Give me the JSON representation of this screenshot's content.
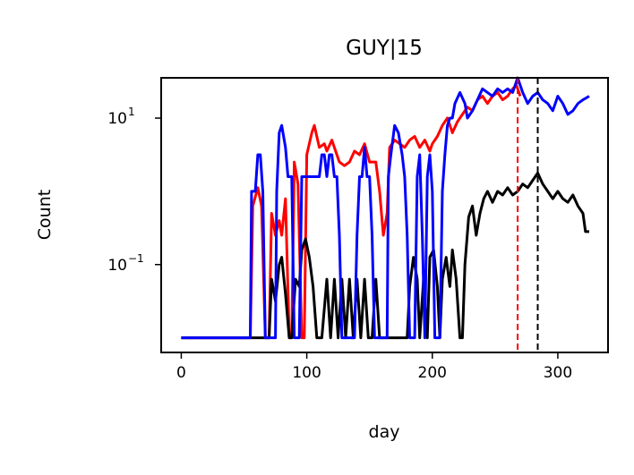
{
  "chart_data": {
    "type": "line",
    "title": "GUY|15",
    "xlabel": "day",
    "ylabel": "Count",
    "xlim": [
      -16,
      340
    ],
    "y_scale": "log",
    "ylim_log10": [
      -2.2,
      1.55
    ],
    "x_ticks": [
      {
        "value": 0,
        "label": "0"
      },
      {
        "value": 100,
        "label": "100"
      },
      {
        "value": 200,
        "label": "200"
      },
      {
        "value": 300,
        "label": "300"
      }
    ],
    "y_ticks": [
      {
        "log10": 1,
        "base": "10",
        "exp": "1"
      },
      {
        "log10": -1,
        "base": "10",
        "exp": "−1"
      }
    ],
    "vlines": [
      {
        "x": 268,
        "color": "#ff0000",
        "style": "dashed"
      },
      {
        "x": 284,
        "color": "#000000",
        "style": "dashed"
      }
    ],
    "series": [
      {
        "color": "#ff0000",
        "points": [
          [
            0,
            -2
          ],
          [
            55,
            -2
          ],
          [
            57,
            -0.2
          ],
          [
            61,
            0.05
          ],
          [
            64,
            -0.2
          ],
          [
            67,
            -2
          ],
          [
            70,
            -2
          ],
          [
            72,
            -0.3
          ],
          [
            75,
            -0.6
          ],
          [
            78,
            -0.4
          ],
          [
            80,
            -0.6
          ],
          [
            83,
            -0.1
          ],
          [
            86,
            -2
          ],
          [
            88,
            -2
          ],
          [
            90,
            0.4
          ],
          [
            93,
            0.1
          ],
          [
            96,
            -2
          ],
          [
            98,
            -2
          ],
          [
            100,
            0.5
          ],
          [
            104,
            0.8
          ],
          [
            106,
            0.9
          ],
          [
            110,
            0.6
          ],
          [
            114,
            0.65
          ],
          [
            116,
            0.55
          ],
          [
            120,
            0.7
          ],
          [
            124,
            0.5
          ],
          [
            126,
            0.4
          ],
          [
            130,
            0.35
          ],
          [
            134,
            0.4
          ],
          [
            138,
            0.55
          ],
          [
            142,
            0.5
          ],
          [
            146,
            0.65
          ],
          [
            150,
            0.4
          ],
          [
            155,
            0.4
          ],
          [
            158,
            0.0
          ],
          [
            161,
            -0.6
          ],
          [
            164,
            -0.3
          ],
          [
            166,
            0.6
          ],
          [
            170,
            0.7
          ],
          [
            174,
            0.65
          ],
          [
            178,
            0.6
          ],
          [
            182,
            0.7
          ],
          [
            186,
            0.75
          ],
          [
            190,
            0.6
          ],
          [
            194,
            0.7
          ],
          [
            198,
            0.55
          ],
          [
            200,
            0.65
          ],
          [
            204,
            0.75
          ],
          [
            208,
            0.9
          ],
          [
            212,
            1.0
          ],
          [
            216,
            0.8
          ],
          [
            220,
            0.95
          ],
          [
            224,
            1.05
          ],
          [
            228,
            1.15
          ],
          [
            232,
            1.1
          ],
          [
            236,
            1.25
          ],
          [
            240,
            1.3
          ],
          [
            244,
            1.2
          ],
          [
            248,
            1.3
          ],
          [
            252,
            1.35
          ],
          [
            256,
            1.25
          ],
          [
            260,
            1.3
          ],
          [
            264,
            1.4
          ],
          [
            267,
            1.45
          ],
          [
            270,
            1.3
          ]
        ]
      },
      {
        "color": "#000000",
        "points": [
          [
            0,
            -2
          ],
          [
            70,
            -2
          ],
          [
            72,
            -1.2
          ],
          [
            75,
            -1.5
          ],
          [
            78,
            -1.0
          ],
          [
            80,
            -0.9
          ],
          [
            83,
            -1.4
          ],
          [
            86,
            -2
          ],
          [
            88,
            -2
          ],
          [
            91,
            -1.2
          ],
          [
            94,
            -1.3
          ],
          [
            96,
            -0.8
          ],
          [
            99,
            -0.65
          ],
          [
            102,
            -0.9
          ],
          [
            105,
            -1.3
          ],
          [
            108,
            -2
          ],
          [
            112,
            -2
          ],
          [
            116,
            -1.2
          ],
          [
            119,
            -2
          ],
          [
            122,
            -1.2
          ],
          [
            125,
            -2
          ],
          [
            128,
            -1.2
          ],
          [
            131,
            -2
          ],
          [
            134,
            -1.2
          ],
          [
            137,
            -2
          ],
          [
            140,
            -1.2
          ],
          [
            143,
            -2
          ],
          [
            146,
            -1.2
          ],
          [
            149,
            -2
          ],
          [
            152,
            -2
          ],
          [
            155,
            -1.2
          ],
          [
            158,
            -2
          ],
          [
            162,
            -2
          ],
          [
            168,
            -2
          ],
          [
            174,
            -2
          ],
          [
            180,
            -2
          ],
          [
            182,
            -1.3
          ],
          [
            185,
            -0.9
          ],
          [
            188,
            -1.2
          ],
          [
            190,
            -2
          ],
          [
            193,
            -1.2
          ],
          [
            196,
            -2
          ],
          [
            198,
            -0.9
          ],
          [
            201,
            -0.8
          ],
          [
            204,
            -1.3
          ],
          [
            206,
            -2
          ],
          [
            208,
            -1.2
          ],
          [
            211,
            -0.9
          ],
          [
            214,
            -1.3
          ],
          [
            216,
            -0.8
          ],
          [
            219,
            -1.2
          ],
          [
            222,
            -2
          ],
          [
            224,
            -2
          ],
          [
            226,
            -1.0
          ],
          [
            229,
            -0.35
          ],
          [
            232,
            -0.2
          ],
          [
            235,
            -0.6
          ],
          [
            238,
            -0.3
          ],
          [
            241,
            -0.1
          ],
          [
            244,
            0.0
          ],
          [
            248,
            -0.15
          ],
          [
            252,
            0.0
          ],
          [
            256,
            -0.05
          ],
          [
            260,
            0.05
          ],
          [
            264,
            -0.05
          ],
          [
            268,
            0.0
          ],
          [
            272,
            0.1
          ],
          [
            276,
            0.05
          ],
          [
            280,
            0.15
          ],
          [
            284,
            0.25
          ],
          [
            288,
            0.1
          ],
          [
            292,
            0.0
          ],
          [
            296,
            -0.1
          ],
          [
            300,
            0.0
          ],
          [
            304,
            -0.1
          ],
          [
            308,
            -0.15
          ],
          [
            312,
            -0.05
          ],
          [
            316,
            -0.2
          ],
          [
            320,
            -0.3
          ],
          [
            322,
            -0.55
          ],
          [
            325,
            -0.55
          ]
        ]
      },
      {
        "color": "#0000ff",
        "points": [
          [
            0,
            -2
          ],
          [
            55,
            -2
          ],
          [
            56,
            0
          ],
          [
            59,
            0
          ],
          [
            61,
            0.5
          ],
          [
            63,
            0.5
          ],
          [
            65,
            0
          ],
          [
            67,
            -2
          ],
          [
            75,
            -2
          ],
          [
            76,
            0
          ],
          [
            78,
            0.8
          ],
          [
            80,
            0.9
          ],
          [
            83,
            0.6
          ],
          [
            85,
            0.2
          ],
          [
            88,
            0.2
          ],
          [
            90,
            -2
          ],
          [
            94,
            -2
          ],
          [
            96,
            0.2
          ],
          [
            100,
            0.2
          ],
          [
            104,
            0.2
          ],
          [
            108,
            0.2
          ],
          [
            110,
            0.2
          ],
          [
            112,
            0.5
          ],
          [
            114,
            0.5
          ],
          [
            116,
            0.2
          ],
          [
            118,
            0.5
          ],
          [
            120,
            0.5
          ],
          [
            122,
            0.2
          ],
          [
            124,
            0.2
          ],
          [
            126,
            -0.6
          ],
          [
            128,
            -2
          ],
          [
            138,
            -2
          ],
          [
            140,
            -0.6
          ],
          [
            142,
            0.2
          ],
          [
            144,
            0.2
          ],
          [
            146,
            0.6
          ],
          [
            148,
            0.2
          ],
          [
            150,
            0.2
          ],
          [
            152,
            -0.6
          ],
          [
            154,
            -2
          ],
          [
            164,
            -2
          ],
          [
            165,
            0.2
          ],
          [
            167,
            0.5
          ],
          [
            170,
            0.9
          ],
          [
            173,
            0.8
          ],
          [
            176,
            0.5
          ],
          [
            178,
            0.2
          ],
          [
            180,
            -0.6
          ],
          [
            182,
            -2
          ],
          [
            186,
            -2
          ],
          [
            188,
            0.2
          ],
          [
            190,
            0.5
          ],
          [
            192,
            -0.6
          ],
          [
            194,
            -2
          ],
          [
            196,
            0.2
          ],
          [
            198,
            0.5
          ],
          [
            200,
            0.0
          ],
          [
            202,
            -2
          ],
          [
            206,
            -2
          ],
          [
            208,
            0.0
          ],
          [
            210,
            0.5
          ],
          [
            212,
            0.9
          ],
          [
            214,
            1.0
          ],
          [
            216,
            1.0
          ],
          [
            218,
            1.2
          ],
          [
            222,
            1.35
          ],
          [
            226,
            1.2
          ],
          [
            228,
            1.0
          ],
          [
            232,
            1.1
          ],
          [
            236,
            1.25
          ],
          [
            240,
            1.4
          ],
          [
            244,
            1.35
          ],
          [
            248,
            1.3
          ],
          [
            252,
            1.4
          ],
          [
            256,
            1.35
          ],
          [
            260,
            1.4
          ],
          [
            264,
            1.35
          ],
          [
            268,
            1.55
          ],
          [
            272,
            1.35
          ],
          [
            276,
            1.2
          ],
          [
            280,
            1.3
          ],
          [
            284,
            1.35
          ],
          [
            288,
            1.25
          ],
          [
            292,
            1.2
          ],
          [
            296,
            1.1
          ],
          [
            300,
            1.3
          ],
          [
            304,
            1.2
          ],
          [
            308,
            1.05
          ],
          [
            312,
            1.1
          ],
          [
            316,
            1.2
          ],
          [
            320,
            1.25
          ],
          [
            325,
            1.3
          ]
        ]
      }
    ]
  }
}
